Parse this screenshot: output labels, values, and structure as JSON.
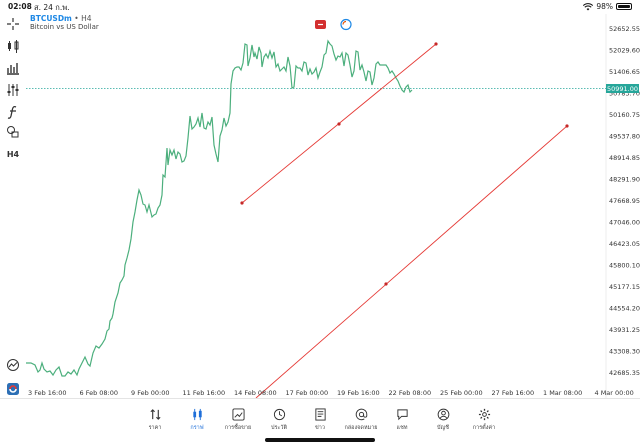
{
  "status_bar": {
    "time": "02:08",
    "date": "ส. 24 ก.พ.",
    "battery": "98%"
  },
  "chart": {
    "symbol": "BTCUSDm",
    "separator": "•",
    "timeframe": "H4",
    "description": "Bitcoin vs US Dollar",
    "current_price": "50991.00",
    "price_labels": [
      "52652.55",
      "52029.60",
      "51406.65",
      "50783.70",
      "50160.75",
      "49537.80",
      "48914.85",
      "48291.90",
      "47668.95",
      "47046.00",
      "46423.05",
      "45800.10",
      "45177.15",
      "44554.20",
      "43931.25",
      "43308.30",
      "42685.35"
    ],
    "time_labels": [
      "3 Feb 16:00",
      "6 Feb 08:00",
      "9 Feb 00:00",
      "11 Feb 16:00",
      "14 Feb 08:00",
      "17 Feb 00:00",
      "19 Feb 16:00",
      "22 Feb 08:00",
      "25 Feb 00:00",
      "27 Feb 16:00",
      "1 Mar 08:00",
      "4 Mar 00:00"
    ],
    "line_color": "#4caf7d",
    "trendline_color": "#e53935"
  },
  "left_toolbar": {
    "timeframe_label": "H4",
    "icons": [
      "crosshair-icon",
      "candlestick-icon",
      "bar-chart-icon",
      "settings-sliders-icon",
      "function-icon",
      "shapes-icon"
    ]
  },
  "bottom_nav": {
    "items": [
      {
        "name": "quotes",
        "label": "ราคา",
        "icon": "arrows-updown-icon"
      },
      {
        "name": "chart",
        "label": "กราฟ",
        "icon": "candles-icon"
      },
      {
        "name": "trade",
        "label": "การซื้อขาย",
        "icon": "trend-icon"
      },
      {
        "name": "history",
        "label": "ประวัติ",
        "icon": "history-icon"
      },
      {
        "name": "news",
        "label": "ข่าว",
        "icon": "news-icon"
      },
      {
        "name": "mailbox",
        "label": "กล่องจดหมาย",
        "icon": "at-icon"
      },
      {
        "name": "chat",
        "label": "แชท",
        "icon": "chat-icon"
      },
      {
        "name": "accounts",
        "label": "บัญชี",
        "icon": "account-icon"
      },
      {
        "name": "settings",
        "label": "การตั้งค่า",
        "icon": "gear-icon"
      }
    ]
  }
}
